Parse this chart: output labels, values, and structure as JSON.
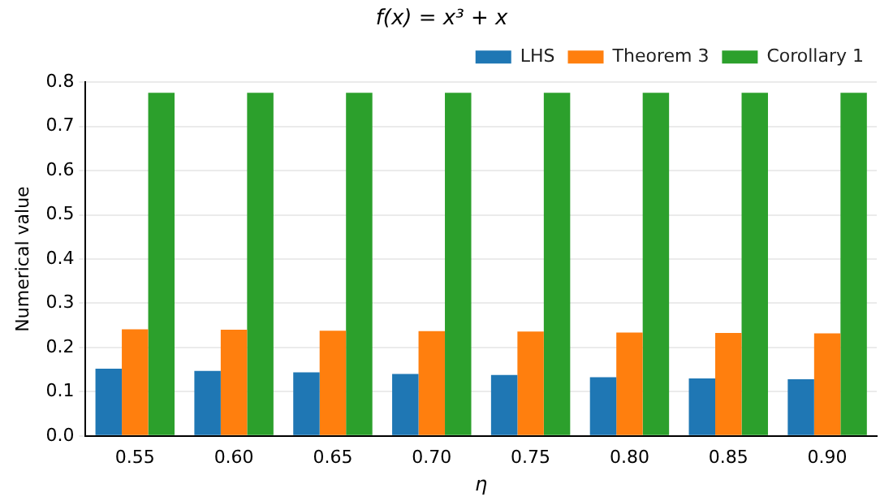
{
  "chart_data": {
    "type": "bar",
    "title": "f(x) = x³ + x",
    "xlabel": "η",
    "ylabel": "Numerical value",
    "categories": [
      "0.55",
      "0.60",
      "0.65",
      "0.70",
      "0.75",
      "0.80",
      "0.85",
      "0.90"
    ],
    "series": [
      {
        "name": "LHS",
        "color": "#1f77b4",
        "values": [
          0.152,
          0.147,
          0.144,
          0.14,
          0.138,
          0.133,
          0.13,
          0.128
        ]
      },
      {
        "name": "Theorem 3",
        "color": "#ff7f0e",
        "values": [
          0.241,
          0.24,
          0.238,
          0.237,
          0.236,
          0.234,
          0.233,
          0.232
        ]
      },
      {
        "name": "Corollary 1",
        "color": "#2ca02c",
        "values": [
          0.776,
          0.776,
          0.776,
          0.776,
          0.776,
          0.776,
          0.776,
          0.776
        ]
      }
    ],
    "ylim": [
      0,
      0.8
    ],
    "yticks": [
      {
        "value": 0,
        "label": "0.0"
      },
      0.1,
      0.2,
      0.3,
      0.4,
      0.5,
      0.6,
      0.7,
      0.8
    ],
    "grid": "y",
    "legend": "top right"
  }
}
